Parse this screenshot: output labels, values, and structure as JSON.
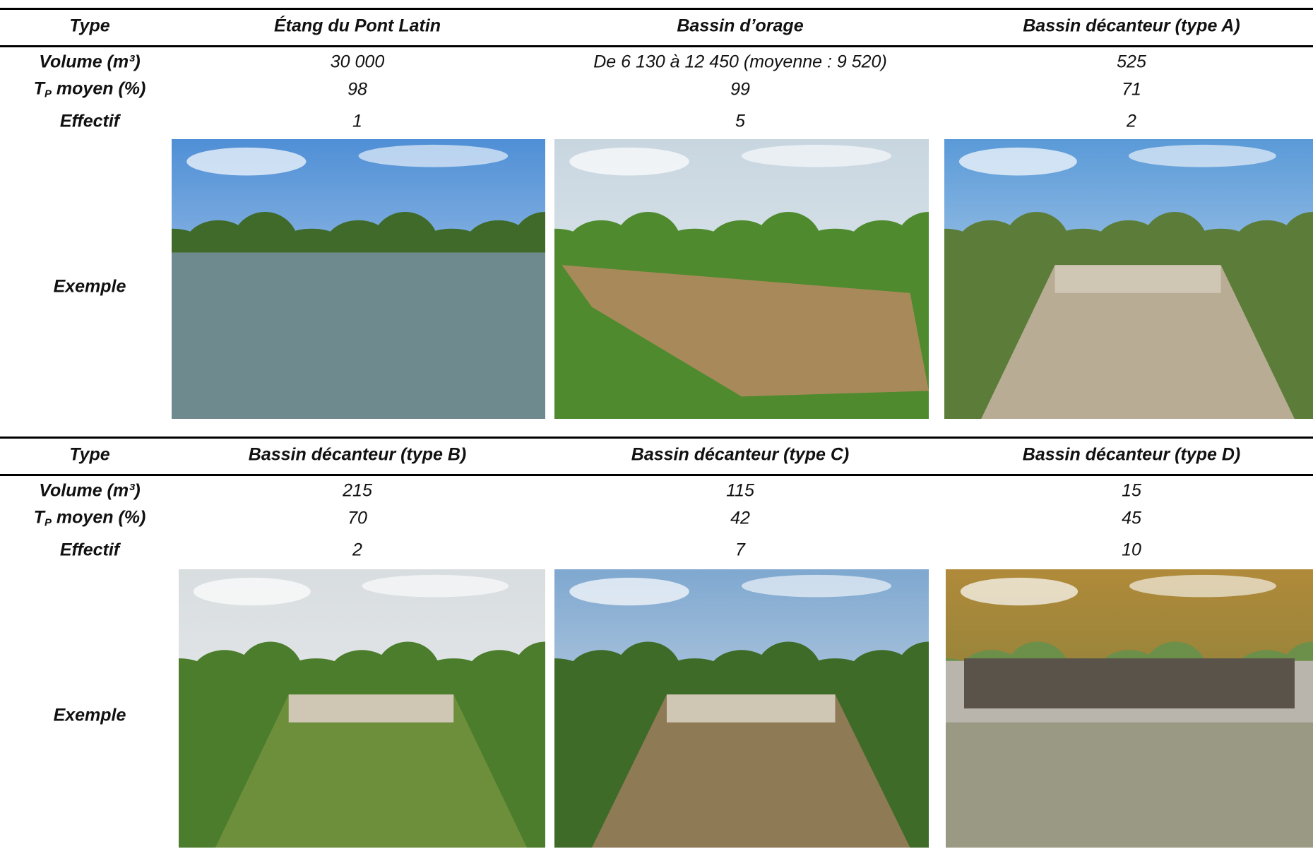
{
  "tables": [
    {
      "header": {
        "label": "Type",
        "columns": [
          "Étang du Pont Latin",
          "Bassin d’orage",
          "Bassin décanteur (type A)"
        ]
      },
      "rows": [
        {
          "label": "Volume (m³)",
          "values": [
            "30 000",
            "De 6 130 à 12 450 (moyenne : 9 520)",
            "525"
          ]
        },
        {
          "label": {
            "main": "T",
            "sub": "P",
            "rest": " moyen (%)"
          },
          "values": [
            "98",
            "99",
            "71"
          ]
        },
        {
          "label": "Effectif",
          "values": [
            "1",
            "5",
            "2"
          ]
        },
        {
          "label": "Exemple"
        }
      ]
    },
    {
      "header": {
        "label": "Type",
        "columns": [
          "Bassin décanteur (type B)",
          "Bassin décanteur (type C)",
          "Bassin décanteur (type D)"
        ]
      },
      "rows": [
        {
          "label": "Volume (m³)",
          "values": [
            "215",
            "115",
            "15"
          ]
        },
        {
          "label": {
            "main": "T",
            "sub": "P",
            "rest": " moyen (%)"
          },
          "values": [
            "70",
            "42",
            "45"
          ]
        },
        {
          "label": "Effectif",
          "values": [
            "2",
            "7",
            "10"
          ]
        },
        {
          "label": "Exemple"
        }
      ]
    }
  ]
}
